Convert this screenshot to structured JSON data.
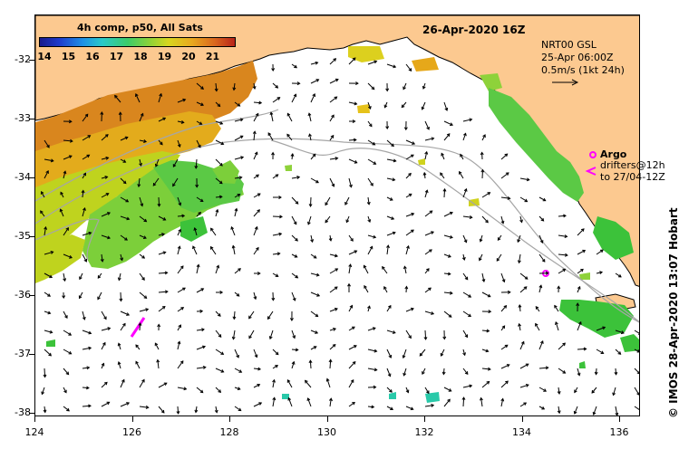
{
  "map": {
    "title": "4h comp, p50, All Sats",
    "date_title": "26-Apr-2020 16Z",
    "colorbar": {
      "labels": [
        "14",
        "15",
        "16",
        "17",
        "18",
        "19",
        "20",
        "21"
      ],
      "min": 14,
      "max": 21.5
    },
    "legend": {
      "source": "NRT00 GSL",
      "date": "25-Apr 06:00Z",
      "speed": "0.5m/s (1kt 24h)"
    },
    "argo": {
      "label": "Argo",
      "drifters_line1": "drifters@12h",
      "drifters_line2": "to 27/04-12Z"
    },
    "credit": "© IMOS 28-Apr-2020 13:07 Hobart",
    "y_axis": [
      "-32",
      "-33",
      "-34",
      "-35",
      "-36",
      "-37",
      "-38"
    ],
    "x_axis": [
      "124",
      "126",
      "128",
      "130",
      "132",
      "134",
      "136"
    ],
    "colors": {
      "land": "#fcc990",
      "ocean": "#ffffff",
      "contour": "#a6a6a6",
      "argo": "#ff00ff"
    }
  }
}
